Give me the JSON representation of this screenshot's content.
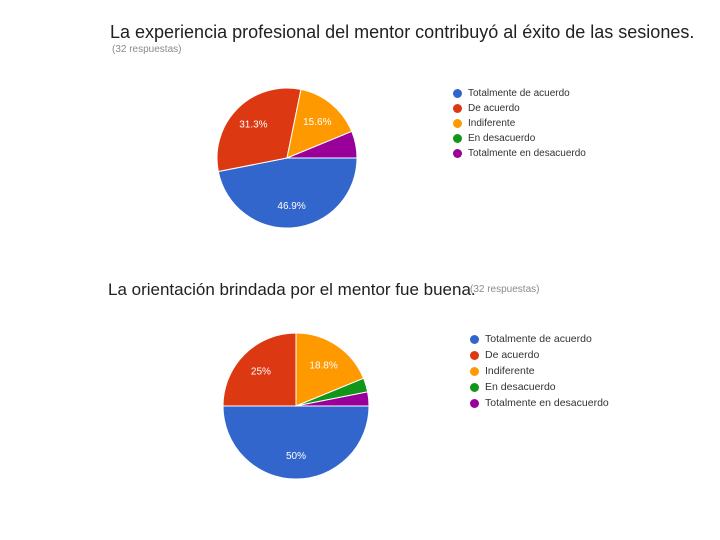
{
  "colors": {
    "blue": "#3366cc",
    "red": "#dc3912",
    "orange": "#ff9900",
    "green": "#109618",
    "purple": "#990099"
  },
  "chart_data": [
    {
      "type": "pie",
      "title": "La experiencia profesional del mentor contribuyó al éxito de las sesiones.",
      "subtitle": "(32 respuestas)",
      "legend_position": "right",
      "slices": [
        {
          "label": "Totalmente de acuerdo",
          "value": 46.9,
          "display": "46.9%",
          "color": "#3366cc"
        },
        {
          "label": "De acuerdo",
          "value": 31.3,
          "display": "31.3%",
          "color": "#dc3912"
        },
        {
          "label": "Indiferente",
          "value": 15.6,
          "display": "15.6%",
          "color": "#ff9900"
        },
        {
          "label": "En desacuerdo",
          "value": 0,
          "display": "",
          "color": "#109618"
        },
        {
          "label": "Totalmente en desacuerdo",
          "value": 6.2,
          "display": "",
          "color": "#990099"
        }
      ]
    },
    {
      "type": "pie",
      "title": "La orientación brindada por el mentor fue buena.",
      "subtitle": "(32 respuestas)",
      "legend_position": "right",
      "slices": [
        {
          "label": "Totalmente de acuerdo",
          "value": 50,
          "display": "50%",
          "color": "#3366cc"
        },
        {
          "label": "De acuerdo",
          "value": 25,
          "display": "25%",
          "color": "#dc3912"
        },
        {
          "label": "Indiferente",
          "value": 18.8,
          "display": "18.8%",
          "color": "#ff9900"
        },
        {
          "label": "En desacuerdo",
          "value": 3.1,
          "display": "",
          "color": "#109618"
        },
        {
          "label": "Totalmente en desacuerdo",
          "value": 3.1,
          "display": "",
          "color": "#990099"
        }
      ]
    }
  ]
}
